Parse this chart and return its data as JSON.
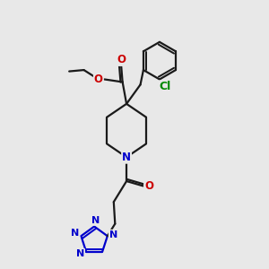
{
  "bg_color": "#e8e8e8",
  "bond_color": "#1a1a1a",
  "bond_width": 1.6,
  "dbo": 0.08,
  "atom_colors": {
    "O": "#cc0000",
    "N": "#0000cc",
    "Cl": "#008800",
    "C": "#1a1a1a"
  },
  "font_size": 8.5,
  "fig_size": [
    3.0,
    3.0
  ],
  "dpi": 100,
  "xlim": [
    0,
    10
  ],
  "ylim": [
    0,
    10
  ]
}
